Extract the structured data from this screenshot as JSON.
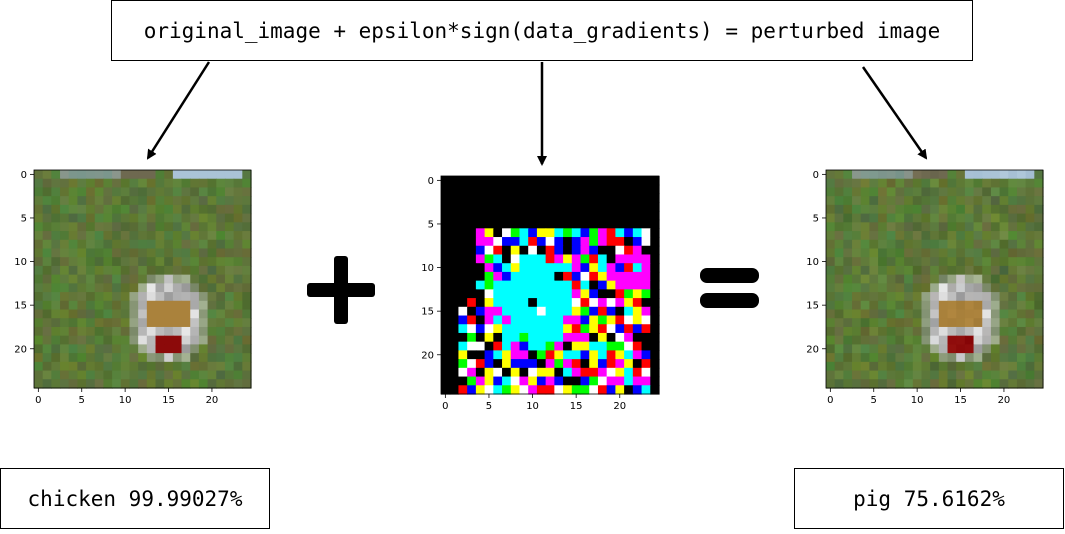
{
  "formula": "original_image + epsilon*sign(data_gradients) = perturbed image",
  "operators": {
    "plus": "+",
    "equals": "="
  },
  "panels": [
    {
      "name": "original-image",
      "ticks_x": [
        "0",
        "5",
        "10",
        "15",
        "20"
      ],
      "ticks_y": [
        "0",
        "5",
        "10",
        "15",
        "20"
      ]
    },
    {
      "name": "perturbation",
      "ticks_x": [
        "0",
        "5",
        "10",
        "15",
        "20"
      ],
      "ticks_y": [
        "0",
        "5",
        "10",
        "15",
        "20"
      ]
    },
    {
      "name": "perturbed-image",
      "ticks_x": [
        "0",
        "5",
        "10",
        "15",
        "20"
      ],
      "ticks_y": [
        "0",
        "5",
        "10",
        "15",
        "20"
      ]
    }
  ],
  "predictions": {
    "original": "chicken 99.99027%",
    "perturbed": "pig 75.6162%"
  },
  "colors": {
    "grass": "#5e7a38",
    "sky": "#a9c4d8",
    "noise_palette": [
      "#000000",
      "#ffffff",
      "#ff0000",
      "#00ff00",
      "#0000ff",
      "#00ffff",
      "#ff00ff",
      "#ffff00"
    ]
  }
}
